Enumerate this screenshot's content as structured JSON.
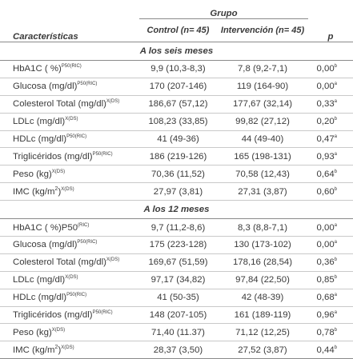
{
  "header": {
    "characteristics": "Características",
    "group": "Grupo",
    "p": "p",
    "control": "Control (n= 45)",
    "intervention": "Intervención (n= 45)"
  },
  "sections": [
    {
      "title": "A los seis meses",
      "rows": [
        {
          "label": "HbA1C ( %)",
          "sup": "P50(RIC)",
          "control": "9,9 (10,3-8,3)",
          "intervention": "7,8 (9,2-7,1)",
          "p": "0,00",
          "p_sup": "b"
        },
        {
          "label": "Glucosa (mg/dl)",
          "sup": "P50(RIC)",
          "control": "170 (207-146)",
          "intervention": "119 (164-90)",
          "p": "0,00",
          "p_sup": "a"
        },
        {
          "label": "Colesterol Total (mg/dl)",
          "sup": "X(DS)",
          "control": "186,67 (57,12)",
          "intervention": "177,67 (32,14)",
          "p": "0,33",
          "p_sup": "a"
        },
        {
          "label": "LDLc (mg/dl)",
          "sup": "X(DS)",
          "control": "108,23 (33,85)",
          "intervention": "99,82 (27,12)",
          "p": "0,20",
          "p_sup": "b"
        },
        {
          "label": "HDLc (mg/dl)",
          "sup": "P50(RIC)",
          "control": "41 (49-36)",
          "intervention": "44 (49-40)",
          "p": "0,47",
          "p_sup": "a"
        },
        {
          "label": "Triglicéridos (mg/dl)",
          "sup": "P50(RIC)",
          "control": "186 (219-126)",
          "intervention": "165 (198-131)",
          "p": "0,93",
          "p_sup": "a"
        },
        {
          "label": "Peso (kg)",
          "sup": "X(DS)",
          "control": "70,36 (11,52)",
          "intervention": "70,58 (12,43)",
          "p": "0,64",
          "p_sup": "b"
        },
        {
          "label": "IMC (kg/m",
          "unit_sq": "2",
          "label_tail": ")",
          "sup": "X(DS)",
          "control": "27,97 (3,81)",
          "intervention": "27,31 (3,87)",
          "p": "0,60",
          "p_sup": "b"
        }
      ]
    },
    {
      "title": "A los 12 meses",
      "rows": [
        {
          "label": "HbA1C ( %)P50",
          "sup": "(RIC)",
          "control": "9,7 (11,2-8,6)",
          "intervention": "8,3 (8,8-7,1)",
          "p": "0,00",
          "p_sup": "a"
        },
        {
          "label": "Glucosa (mg/dl)",
          "sup": "P50(RIC)",
          "control": "175 (223-128)",
          "intervention": "130 (173-102)",
          "p": "0,00",
          "p_sup": "a"
        },
        {
          "label": "Colesterol Total (mg/dl)",
          "sup": "X(DS)",
          "control": "169,67 (51,59)",
          "intervention": "178,16 (28,54)",
          "p": "0,36",
          "p_sup": "b"
        },
        {
          "label": "LDLc (mg/dl)",
          "sup": "X(DS)",
          "control": "97,17 (34,82)",
          "intervention": "97,84 (22,50)",
          "p": "0,85",
          "p_sup": "b"
        },
        {
          "label": "HDLc (mg/dl)",
          "sup": "P50(RIC)",
          "control": "41 (50-35)",
          "intervention": "42 (48-39)",
          "p": "0,68",
          "p_sup": "a"
        },
        {
          "label": "Triglicéridos (mg/dl)",
          "sup": "P50(RIC)",
          "control": "148 (207-105)",
          "intervention": "161 (189-119)",
          "p": "0,96",
          "p_sup": "a"
        },
        {
          "label": "Peso (kg)",
          "sup": "X(DS)",
          "control": "71,40 (11.37)",
          "intervention": "71,12 (12,25)",
          "p": "0,78",
          "p_sup": "b"
        },
        {
          "label": "IMC (kg/m",
          "unit_sq": "2",
          "label_tail": ")",
          "sup": "X(DS)",
          "control": "28,37 (3,50)",
          "intervention": "27,52 (3,87)",
          "p": "0,44",
          "p_sup": "b"
        }
      ]
    }
  ]
}
